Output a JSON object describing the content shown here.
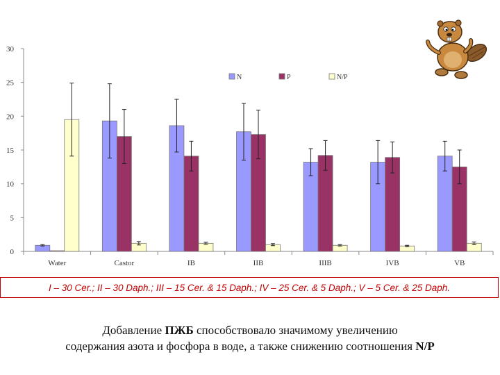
{
  "chart_data": {
    "type": "bar",
    "categories": [
      "Water",
      "Castor",
      "IB",
      "IIB",
      "IIIB",
      "IVB",
      "VB"
    ],
    "series": [
      {
        "name": "N",
        "color": "#9999ff",
        "values": [
          0.9,
          19.3,
          18.6,
          17.7,
          13.2,
          13.2,
          14.1
        ],
        "errors": [
          0.1,
          5.5,
          3.9,
          4.2,
          2.0,
          3.2,
          2.2
        ]
      },
      {
        "name": "P",
        "color": "#993366",
        "values": [
          0.1,
          17.0,
          14.1,
          17.3,
          14.2,
          13.9,
          12.5
        ],
        "errors": [
          0.0,
          4.0,
          2.2,
          3.6,
          2.2,
          2.3,
          2.5
        ]
      },
      {
        "name": "N/P",
        "color": "#ffffcc",
        "values": [
          19.5,
          1.2,
          1.2,
          1.0,
          0.9,
          0.8,
          1.2
        ],
        "errors": [
          5.4,
          0.25,
          0.15,
          0.15,
          0.1,
          0.1,
          0.2
        ]
      }
    ],
    "yticks": [
      "0",
      "5",
      "10",
      "15",
      "20",
      "25",
      "30"
    ],
    "ylim": [
      0,
      30
    ],
    "legend_position": "top-center",
    "grid": false
  },
  "footnote": "I – 30 Cer.; II – 30 Daph.; III – 15 Cer. & 15 Daph.; IV – 25 Cer. & 5 Daph.; V – 5 Cer. & 25 Daph.",
  "conclusion": {
    "line1_a": "Добавление ",
    "line1_b": "ПЖБ",
    "line1_c": " способствовало значимому увеличению",
    "line2_a": "содержания азота и фосфора в воде, а также снижению соотношения ",
    "line2_b": "N/P"
  },
  "mascot_icon": "beaver-icon"
}
